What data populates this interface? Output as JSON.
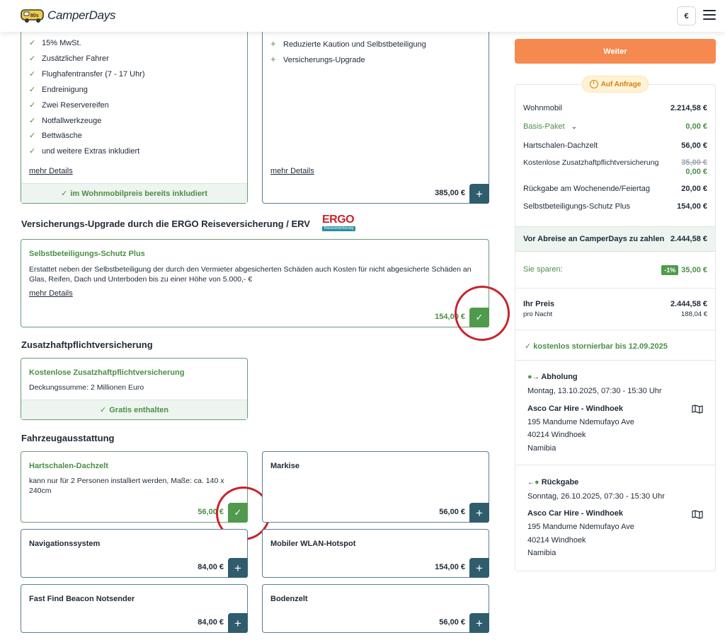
{
  "header": {
    "logo_text": "CamperDays",
    "currency": "€"
  },
  "included_card": {
    "items": [
      "15% MwSt.",
      "Zusätzlicher Fahrer",
      "Flughafentransfer (7 - 17 Uhr)",
      "Endreinigung",
      "Zwei Reservereifen",
      "Notfallwerkzeuge",
      "Bettwäsche",
      "und weitere Extras inkludiert"
    ],
    "details_link": "mehr Details",
    "footer": "im Wohnmobilpreis bereits inkludiert"
  },
  "upgrade_card": {
    "items": [
      "Reduzierte Kaution und Selbstbeteiligung",
      "Versicherungs-Upgrade"
    ],
    "details_link": "mehr Details",
    "price": "385,00 €"
  },
  "insurance_section": {
    "heading": "Versicherungs-Upgrade durch die ERGO Reiseversicherung / ERV",
    "ergo_logo": "ERGO",
    "ergo_sub": "Reiseversicherung",
    "card": {
      "title": "Selbstbeteiligungs-Schutz Plus",
      "description": "Erstattet neben der Selbstbeteiligung der durch den Vermieter abgesicherten Schäden auch Kosten für nicht abgesicherte Schäden an Glas, Reifen, Dach und Unterboden bis zu einer Höhe von 5.000,- €",
      "details_link": "mehr Details",
      "price": "154,00 €"
    }
  },
  "liability_section": {
    "heading": "Zusatzhaftpflichtversicherung",
    "card": {
      "title": "Kostenlose Zusatzhaftpflichtversicherung",
      "description": "Deckungssumme: 2 Millionen Euro",
      "footer": "Gratis enthalten"
    }
  },
  "equipment_section": {
    "heading": "Fahrzeugausstattung",
    "items": [
      {
        "title": "Hartschalen-Dachzelt",
        "description": "kann nur für 2 Personen installiert werden, Maße: ca. 140 x 240cm",
        "price": "56,00 €",
        "selected": true
      },
      {
        "title": "Markise",
        "description": "",
        "price": "56,00 €",
        "selected": false
      },
      {
        "title": "Navigationssystem",
        "description": "",
        "price": "84,00 €",
        "selected": false
      },
      {
        "title": "Mobiler WLAN-Hotspot",
        "description": "",
        "price": "154,00 €",
        "selected": false
      },
      {
        "title": "Fast Find Beacon Notsender",
        "description": "",
        "price": "84,00 €",
        "selected": false
      },
      {
        "title": "Bodenzelt",
        "description": "",
        "price": "56,00 €",
        "selected": false
      }
    ]
  },
  "sidebar": {
    "weiter_label": "Weiter",
    "status_badge": "Auf Anfrage",
    "rows": [
      {
        "label": "Wohnmobil",
        "value": "2.214,58 €"
      },
      {
        "label": "Basis-Paket",
        "value": "0,00 €"
      },
      {
        "label": "Hartschalen-Dachzelt",
        "value": "56,00 €"
      },
      {
        "label": "Kostenlose Zusatzhaftpflichtversicherung",
        "value_old": "35,00 €",
        "value": "0,00 €"
      },
      {
        "label": "Rückgabe am Wochenende/Feiertag",
        "value": "20,00 €"
      },
      {
        "label": "Selbstbeteiligungs-Schutz Plus",
        "value": "154,00 €"
      }
    ],
    "total_label": "Vor Abreise an CamperDays zu zahlen",
    "total_value": "2.444,58 €",
    "savings_label": "Sie sparen:",
    "savings_badge": "-1%",
    "savings_value": "35,00 €",
    "price_label": "Ihr Preis",
    "price_value": "2.444,58 €",
    "per_night_label": "pro Nacht",
    "per_night_value": "188,04 €",
    "cancel_text": "kostenlos stornierbar bis 12.09.2025",
    "pickup": {
      "title": "Abholung",
      "datetime": "Montag, 13.10.2025, 07:30 - 15:30 Uhr",
      "station": "Asco Car Hire - Windhoek",
      "street": "195 Mandume Ndemufayo Ave",
      "city": "40214 Windhoek",
      "country": "Namibia"
    },
    "dropoff": {
      "title": "Rückgabe",
      "datetime": "Sonntag, 26.10.2025, 07:30 - 15:30 Uhr",
      "station": "Asco Car Hire - Windhoek",
      "street": "195 Mandume Ndemufayo Ave",
      "city": "40214 Windhoek",
      "country": "Namibia"
    }
  }
}
